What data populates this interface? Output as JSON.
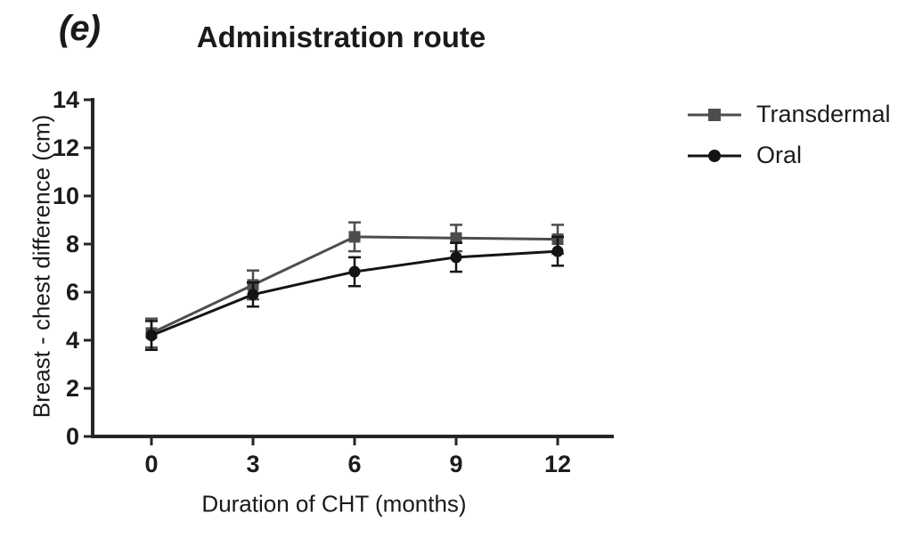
{
  "figure": {
    "panel_label": "(e)"
  },
  "chart_data": {
    "type": "line",
    "title": "Administration route",
    "xlabel": "Duration of CHT (months)",
    "ylabel": "Breast - chest difference (cm)",
    "x": [
      0,
      3,
      6,
      9,
      12
    ],
    "xtick_labels": [
      "0",
      "3",
      "6",
      "9",
      "12"
    ],
    "yticks": [
      0,
      2,
      4,
      6,
      8,
      10,
      12,
      14
    ],
    "ylim": [
      0,
      14
    ],
    "grid": false,
    "legend_position": "right",
    "error_bars": true,
    "series": [
      {
        "name": "Transdermal",
        "marker": "square",
        "color": "#4d4d4d",
        "values": [
          4.3,
          6.3,
          8.3,
          8.25,
          8.2
        ],
        "errors": [
          0.6,
          0.6,
          0.6,
          0.55,
          0.6
        ]
      },
      {
        "name": "Oral",
        "marker": "circle",
        "color": "#141414",
        "values": [
          4.2,
          5.9,
          6.85,
          7.45,
          7.7
        ],
        "errors": [
          0.6,
          0.5,
          0.6,
          0.6,
          0.6
        ]
      }
    ],
    "colors": {
      "axis": "#262626",
      "tick_label": "#1c1c1c"
    }
  }
}
